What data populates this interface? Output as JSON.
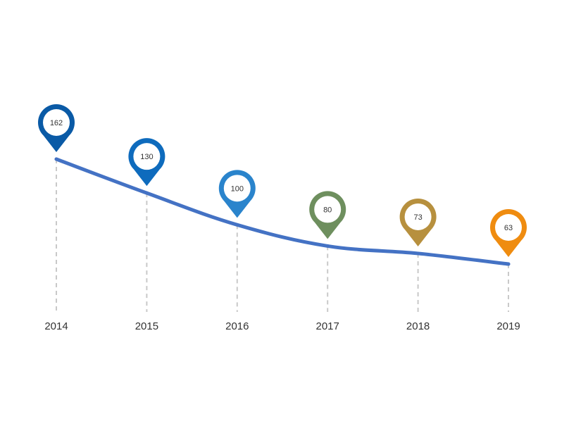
{
  "chart_data": {
    "type": "line",
    "title": "",
    "xlabel": "",
    "ylabel": "",
    "categories": [
      "2014",
      "2015",
      "2016",
      "2017",
      "2018",
      "2019"
    ],
    "values": [
      162,
      130,
      100,
      80,
      73,
      63
    ],
    "data_labels": [
      "162",
      "130",
      "100",
      "80",
      "73",
      "63"
    ],
    "ylim": [
      0,
      200
    ],
    "grid": "dashed vertical drop lines",
    "legend": "none",
    "line_color": "#4472c4",
    "pin_colors": [
      "#0a5aa6",
      "#0e6bbd",
      "#2a84cc",
      "#6e8f5e",
      "#b7903e",
      "#ef8c10"
    ]
  }
}
